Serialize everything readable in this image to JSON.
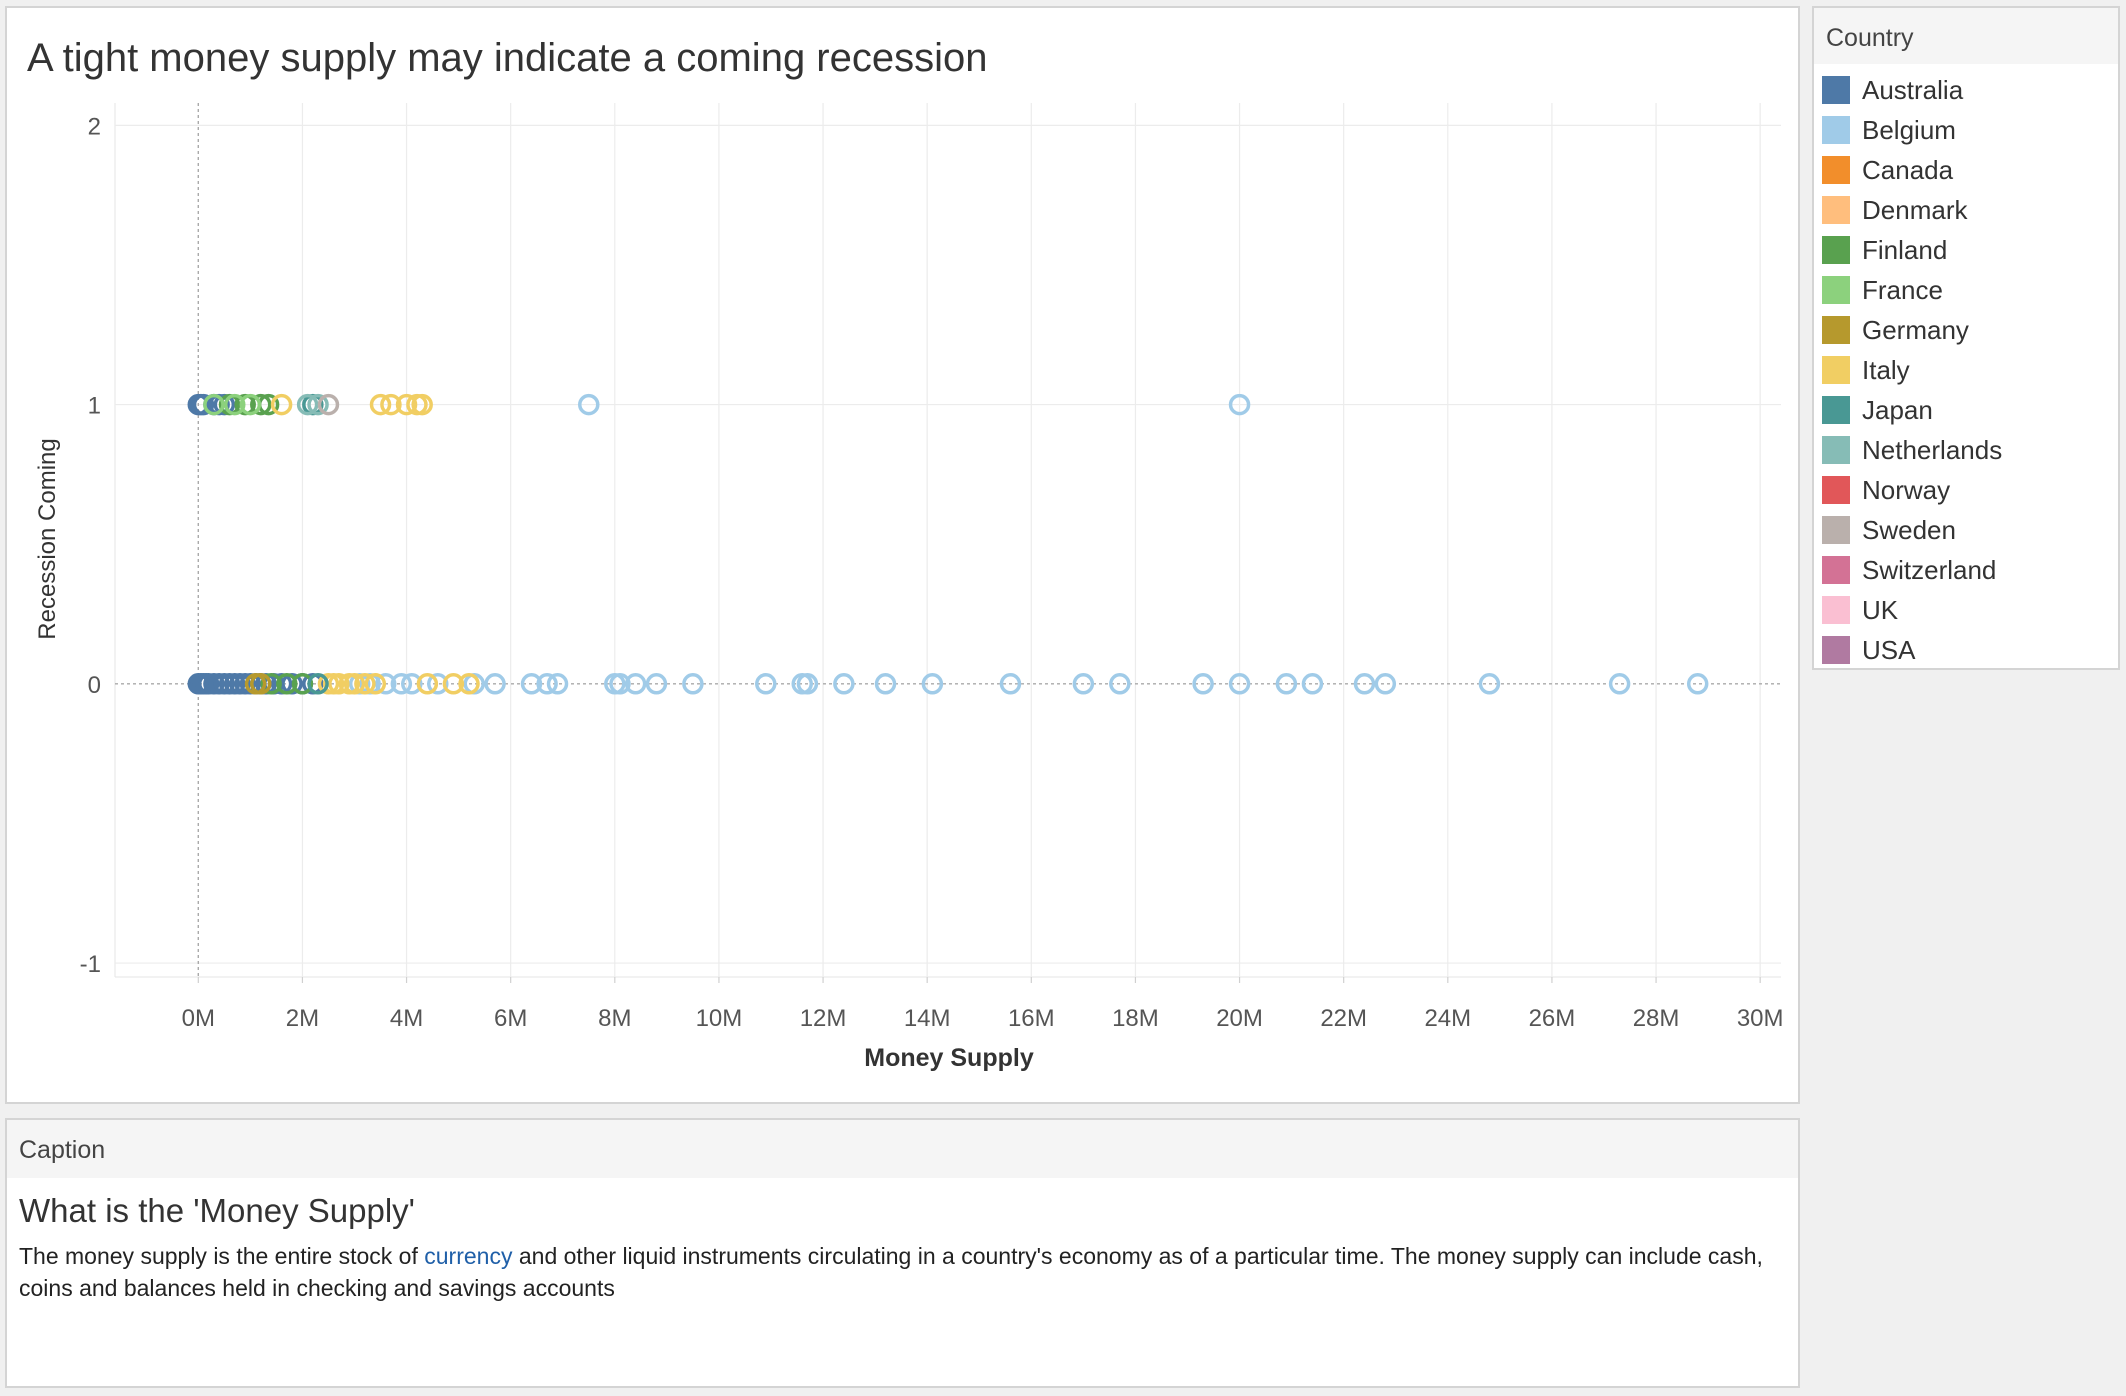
{
  "legend": {
    "header": "Country"
  },
  "caption": {
    "header": "Caption",
    "heading": "What is the 'Money Supply'",
    "text_before": "The money supply is the entire stock of ",
    "link_text": "currency",
    "text_after": " and other liquid instruments circulating in a country's economy as of a particular time. The money supply can include cash, coins and balances held in checking and savings accounts"
  },
  "chart_data": {
    "type": "scatter",
    "title": "A tight money supply may indicate a coming recession",
    "xlabel": "Money Supply",
    "ylabel": "Recession Coming",
    "xlim": [
      -1.6,
      30.4
    ],
    "ylim": [
      -1.05,
      2.08
    ],
    "x_ticks": [
      0,
      2,
      4,
      6,
      8,
      10,
      12,
      14,
      16,
      18,
      20,
      22,
      24,
      26,
      28,
      30
    ],
    "x_tick_labels": [
      "0M",
      "2M",
      "4M",
      "6M",
      "8M",
      "10M",
      "12M",
      "14M",
      "16M",
      "18M",
      "20M",
      "22M",
      "24M",
      "26M",
      "28M",
      "30M"
    ],
    "y_ticks": [
      -1,
      0,
      1,
      2
    ],
    "y_tick_labels": [
      "-1",
      "0",
      "1",
      "2"
    ],
    "x_unit": "M",
    "grid": true,
    "marker": "open-circle",
    "legend_position": "right",
    "series": [
      {
        "name": "Australia",
        "color": "#4e79a7",
        "x": [
          0.0,
          0.05,
          0.1,
          0.15,
          0.2,
          0.3,
          0.4,
          0.5,
          0.6,
          0.7,
          0.8,
          0.9,
          1.0,
          1.1,
          1.2,
          1.3,
          1.45,
          1.6,
          1.8,
          2.0,
          2.2,
          0.0,
          0.05,
          0.1,
          0.3,
          0.4,
          0.5
        ],
        "y": [
          0,
          0,
          0,
          0,
          0,
          0,
          0,
          0,
          0,
          0,
          0,
          0,
          0,
          0,
          0,
          0,
          0,
          0,
          0,
          0,
          0,
          1,
          1,
          1,
          1,
          1,
          1
        ]
      },
      {
        "name": "Belgium",
        "color": "#a0cbe8",
        "x": [
          3.1,
          3.3,
          3.6,
          3.9,
          4.1,
          4.6,
          5.3,
          5.7,
          6.4,
          6.7,
          6.9,
          8.0,
          8.1,
          8.4,
          8.8,
          9.5,
          10.9,
          11.6,
          11.7,
          12.4,
          13.2,
          14.1,
          15.6,
          17.0,
          17.7,
          19.3,
          20.0,
          20.9,
          21.4,
          22.4,
          22.8,
          24.8,
          27.3,
          28.8,
          7.5,
          20.0
        ],
        "y": [
          0,
          0,
          0,
          0,
          0,
          0,
          0,
          0,
          0,
          0,
          0,
          0,
          0,
          0,
          0,
          0,
          0,
          0,
          0,
          0,
          0,
          0,
          0,
          0,
          0,
          0,
          0,
          0,
          0,
          0,
          0,
          0,
          0,
          0,
          1,
          1
        ]
      },
      {
        "name": "Canada",
        "color": "#f28e2b",
        "x": [],
        "y": []
      },
      {
        "name": "Denmark",
        "color": "#ffbe7d",
        "x": [],
        "y": []
      },
      {
        "name": "Finland",
        "color": "#59a14f",
        "x": [
          1.4,
          1.7,
          2.0,
          0.6,
          0.9,
          1.2,
          1.35
        ],
        "y": [
          0,
          0,
          0,
          1,
          1,
          1,
          1
        ]
      },
      {
        "name": "France",
        "color": "#8cd17d",
        "x": [
          0.3,
          0.7,
          1.0
        ],
        "y": [
          1,
          1,
          1
        ]
      },
      {
        "name": "Germany",
        "color": "#b6992d",
        "x": [
          1.1,
          1.2
        ],
        "y": [
          0,
          0
        ]
      },
      {
        "name": "Italy",
        "color": "#f1ce63",
        "x": [
          2.5,
          2.6,
          2.7,
          2.9,
          3.0,
          3.2,
          3.4,
          4.4,
          4.9,
          5.2,
          1.6,
          3.5,
          3.7,
          4.0,
          4.2,
          4.3
        ],
        "y": [
          0,
          0,
          0,
          0,
          0,
          0,
          0,
          0,
          0,
          0,
          1,
          1,
          1,
          1,
          1,
          1
        ]
      },
      {
        "name": "Japan",
        "color": "#499894",
        "x": [
          2.3,
          2.2
        ],
        "y": [
          0,
          1
        ]
      },
      {
        "name": "Netherlands",
        "color": "#86bcb6",
        "x": [
          2.1,
          2.3
        ],
        "y": [
          1,
          1
        ]
      },
      {
        "name": "Norway",
        "color": "#e15759",
        "x": [],
        "y": []
      },
      {
        "name": "Sweden",
        "color": "#bab0ac",
        "x": [
          2.5
        ],
        "y": [
          1
        ]
      },
      {
        "name": "Switzerland",
        "color": "#d37295",
        "x": [],
        "y": []
      },
      {
        "name": "UK",
        "color": "#fabfd2",
        "x": [],
        "y": []
      },
      {
        "name": "USA",
        "color": "#b07aa1",
        "x": [],
        "y": []
      }
    ]
  }
}
